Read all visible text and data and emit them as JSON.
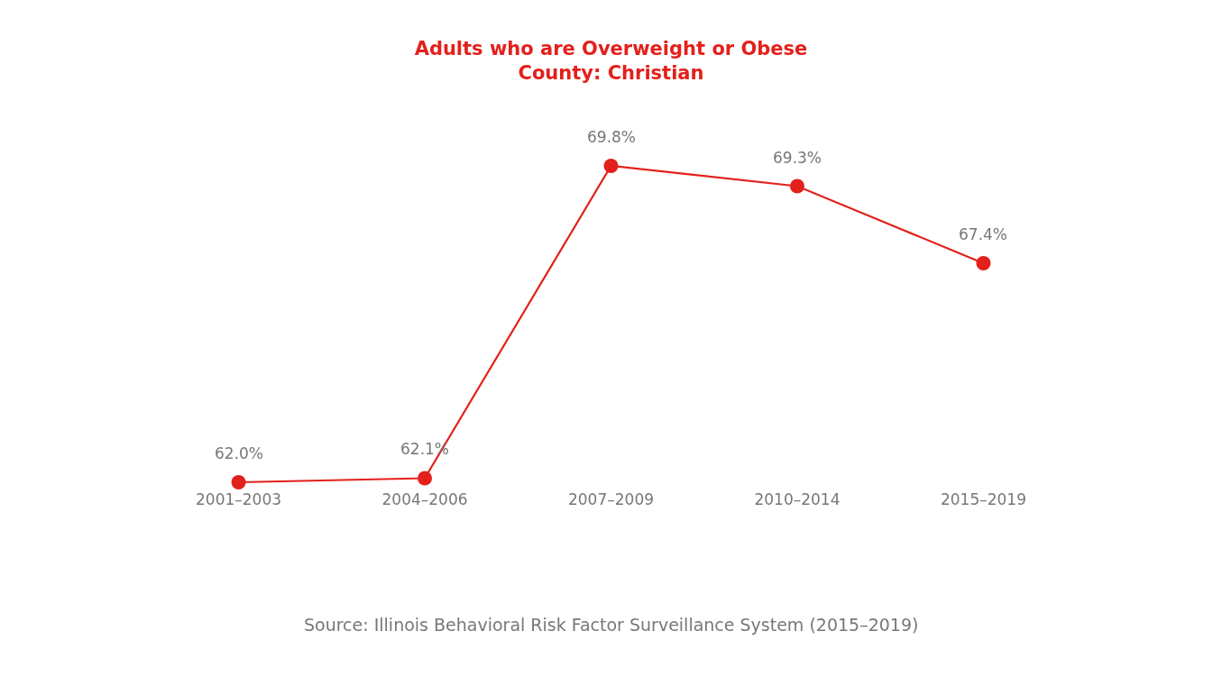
{
  "chart_data": {
    "type": "line",
    "title": "Adults who are Overweight or Obese",
    "subtitle": "County: Christian",
    "categories": [
      "2001–2003",
      "2004–2006",
      "2007–2009",
      "2010–2014",
      "2015–2019"
    ],
    "series": [
      {
        "color": "#e3201b",
        "values": [
          62.0,
          62.1,
          69.8,
          69.3,
          67.4
        ],
        "value_labels": [
          "62.0%",
          "62.1%",
          "69.8%",
          "69.3%",
          "67.4%"
        ]
      }
    ],
    "marker": "circle",
    "line_style": "solid",
    "tick_labels": "x",
    "annotations": [
      "Source: Illinois Behavioral Risk Factor Surveillance System (2015–2019)"
    ]
  }
}
